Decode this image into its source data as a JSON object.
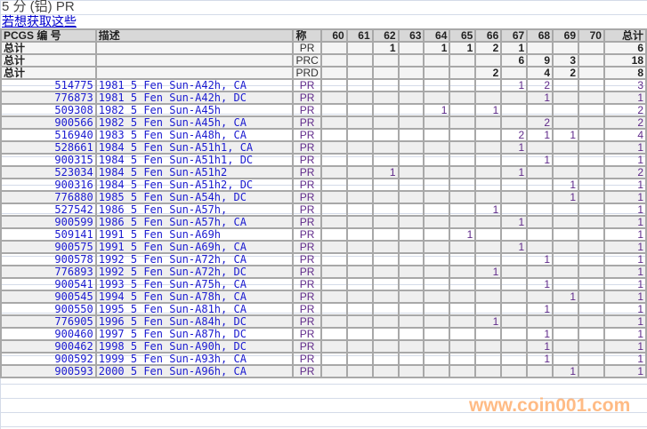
{
  "page": {
    "title": "5 分 (铝) PR",
    "link": "若想获取这些"
  },
  "table": {
    "headers": {
      "code": "PCGS 编 号",
      "desc": "描述",
      "grade": "称",
      "grades": [
        "60",
        "61",
        "62",
        "63",
        "64",
        "65",
        "66",
        "67",
        "68",
        "69",
        "70"
      ],
      "total": "总计"
    },
    "totals": [
      {
        "label": "总计",
        "grade": "PR",
        "counts": [
          "",
          "",
          "1",
          "",
          "1",
          "1",
          "2",
          "1",
          "",
          "",
          ""
        ],
        "total": "6"
      },
      {
        "label": "总计",
        "grade": "PRC",
        "counts": [
          "",
          "",
          "",
          "",
          "",
          "",
          "",
          "6",
          "9",
          "3",
          ""
        ],
        "total": "18"
      },
      {
        "label": "总计",
        "grade": "PRD",
        "counts": [
          "",
          "",
          "",
          "",
          "",
          "",
          "2",
          "",
          "4",
          "2",
          ""
        ],
        "total": "8"
      }
    ],
    "rows": [
      {
        "code": "514775",
        "desc": "1981 5 Fen Sun-A42h, CA",
        "grade": "PR",
        "counts": [
          "",
          "",
          "",
          "",
          "",
          "",
          "",
          "1",
          "2",
          "",
          ""
        ],
        "total": "3"
      },
      {
        "code": "776873",
        "desc": "1981 5 Fen Sun-A42h, DC",
        "grade": "PR",
        "counts": [
          "",
          "",
          "",
          "",
          "",
          "",
          "",
          "",
          "1",
          "",
          ""
        ],
        "total": "1"
      },
      {
        "code": "509308",
        "desc": "1982 5 Fen Sun-A45h",
        "grade": "PR",
        "counts": [
          "",
          "",
          "",
          "",
          "1",
          "",
          "1",
          "",
          "",
          "",
          ""
        ],
        "total": "2"
      },
      {
        "code": "900566",
        "desc": "1982 5 Fen Sun-A45h, CA",
        "grade": "PR",
        "counts": [
          "",
          "",
          "",
          "",
          "",
          "",
          "",
          "",
          "2",
          "",
          ""
        ],
        "total": "2"
      },
      {
        "code": "516940",
        "desc": "1983 5 Fen Sun-A48h, CA",
        "grade": "PR",
        "counts": [
          "",
          "",
          "",
          "",
          "",
          "",
          "",
          "2",
          "1",
          "1",
          ""
        ],
        "total": "4"
      },
      {
        "code": "528661",
        "desc": "1984 5 Fen Sun-A51h1, CA",
        "grade": "PR",
        "counts": [
          "",
          "",
          "",
          "",
          "",
          "",
          "",
          "1",
          "",
          "",
          ""
        ],
        "total": "1"
      },
      {
        "code": "900315",
        "desc": "1984 5 Fen Sun-A51h1, DC",
        "grade": "PR",
        "counts": [
          "",
          "",
          "",
          "",
          "",
          "",
          "",
          "",
          "1",
          "",
          ""
        ],
        "total": "1"
      },
      {
        "code": "523034",
        "desc": "1984 5 Fen Sun-A51h2",
        "grade": "PR",
        "counts": [
          "",
          "",
          "1",
          "",
          "",
          "",
          "",
          "1",
          "",
          "",
          ""
        ],
        "total": "2"
      },
      {
        "code": "900316",
        "desc": "1984 5 Fen Sun-A51h2, DC",
        "grade": "PR",
        "counts": [
          "",
          "",
          "",
          "",
          "",
          "",
          "",
          "",
          "",
          "1",
          ""
        ],
        "total": "1"
      },
      {
        "code": "776880",
        "desc": "1985 5 Fen Sun-A54h, DC",
        "grade": "PR",
        "counts": [
          "",
          "",
          "",
          "",
          "",
          "",
          "",
          "",
          "",
          "1",
          ""
        ],
        "total": "1"
      },
      {
        "code": "527542",
        "desc": "1986 5 Fen Sun-A57h,",
        "grade": "PR",
        "counts": [
          "",
          "",
          "",
          "",
          "",
          "",
          "1",
          "",
          "",
          "",
          ""
        ],
        "total": "1"
      },
      {
        "code": "900599",
        "desc": "1986 5 Fen Sun-A57h, CA",
        "grade": "PR",
        "counts": [
          "",
          "",
          "",
          "",
          "",
          "",
          "",
          "1",
          "",
          "",
          ""
        ],
        "total": "1"
      },
      {
        "code": "509141",
        "desc": "1991 5 Fen Sun-A69h",
        "grade": "PR",
        "counts": [
          "",
          "",
          "",
          "",
          "",
          "1",
          "",
          "",
          "",
          "",
          ""
        ],
        "total": "1"
      },
      {
        "code": "900575",
        "desc": "1991 5 Fen Sun-A69h, CA",
        "grade": "PR",
        "counts": [
          "",
          "",
          "",
          "",
          "",
          "",
          "",
          "1",
          "",
          "",
          ""
        ],
        "total": "1"
      },
      {
        "code": "900578",
        "desc": "1992 5 Fen Sun-A72h, CA",
        "grade": "PR",
        "counts": [
          "",
          "",
          "",
          "",
          "",
          "",
          "",
          "",
          "1",
          "",
          ""
        ],
        "total": "1"
      },
      {
        "code": "776893",
        "desc": "1992 5 Fen Sun-A72h, DC",
        "grade": "PR",
        "counts": [
          "",
          "",
          "",
          "",
          "",
          "",
          "1",
          "",
          "",
          "",
          ""
        ],
        "total": "1"
      },
      {
        "code": "900541",
        "desc": "1993 5 Fen Sun-A75h, CA",
        "grade": "PR",
        "counts": [
          "",
          "",
          "",
          "",
          "",
          "",
          "",
          "",
          "1",
          "",
          ""
        ],
        "total": "1"
      },
      {
        "code": "900545",
        "desc": "1994 5 Fen Sun-A78h, CA",
        "grade": "PR",
        "counts": [
          "",
          "",
          "",
          "",
          "",
          "",
          "",
          "",
          "",
          "1",
          ""
        ],
        "total": "1"
      },
      {
        "code": "900550",
        "desc": "1995 5 Fen Sun-A81h, CA",
        "grade": "PR",
        "counts": [
          "",
          "",
          "",
          "",
          "",
          "",
          "",
          "",
          "1",
          "",
          ""
        ],
        "total": "1"
      },
      {
        "code": "776905",
        "desc": "1996 5 Fen Sun-A84h, DC",
        "grade": "PR",
        "counts": [
          "",
          "",
          "",
          "",
          "",
          "",
          "1",
          "",
          "",
          "",
          ""
        ],
        "total": "1"
      },
      {
        "code": "900460",
        "desc": "1997 5 Fen Sun-A87h, DC",
        "grade": "PR",
        "counts": [
          "",
          "",
          "",
          "",
          "",
          "",
          "",
          "",
          "1",
          "",
          ""
        ],
        "total": "1"
      },
      {
        "code": "900462",
        "desc": "1998 5 Fen Sun-A90h, DC",
        "grade": "PR",
        "counts": [
          "",
          "",
          "",
          "",
          "",
          "",
          "",
          "",
          "1",
          "",
          ""
        ],
        "total": "1"
      },
      {
        "code": "900592",
        "desc": "1999 5 Fen Sun-A93h, CA",
        "grade": "PR",
        "counts": [
          "",
          "",
          "",
          "",
          "",
          "",
          "",
          "",
          "1",
          "",
          ""
        ],
        "total": "1"
      },
      {
        "code": "900593",
        "desc": "2000 5 Fen Sun-A96h, CA",
        "grade": "PR",
        "counts": [
          "",
          "",
          "",
          "",
          "",
          "",
          "",
          "",
          "",
          "1",
          ""
        ],
        "total": "1"
      }
    ]
  },
  "watermark": "www.coin001.com",
  "colors": {
    "link": "#0000cc",
    "count": "#602a8a",
    "header_bg": "#d8d8d8",
    "grid": "#a8a8a8",
    "watermark": "#ffb070"
  }
}
